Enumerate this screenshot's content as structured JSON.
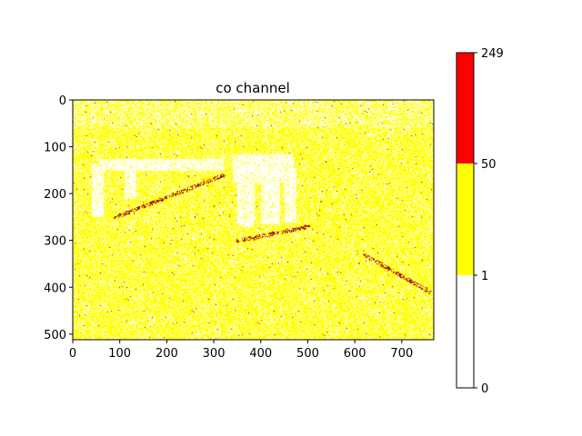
{
  "chart_data": {
    "type": "heatmap",
    "title": "co channel",
    "xlabel": "",
    "ylabel": "",
    "image_size": {
      "width": 768,
      "height": 512
    },
    "xlim": [
      0,
      768
    ],
    "ylim": [
      512,
      0
    ],
    "x_ticks": [
      0,
      100,
      200,
      300,
      400,
      500,
      600,
      700
    ],
    "y_ticks": [
      0,
      100,
      200,
      300,
      400,
      500
    ],
    "colorbar": {
      "boundaries": [
        0,
        1,
        50,
        249
      ],
      "tick_labels": [
        "0",
        "1",
        "50",
        "249"
      ],
      "colors": [
        "#ffffff",
        "#ffff00",
        "#ff0000"
      ]
    },
    "description_regions": {
      "white_patches": [
        {
          "x": [
            55,
            320
          ],
          "y": [
            125,
            150
          ]
        },
        {
          "x": [
            40,
            65
          ],
          "y": [
            135,
            250
          ]
        },
        {
          "x": [
            110,
            135
          ],
          "y": [
            140,
            210
          ]
        },
        {
          "x": [
            340,
            470
          ],
          "y": [
            115,
            175
          ]
        },
        {
          "x": [
            350,
            385
          ],
          "y": [
            165,
            270
          ]
        },
        {
          "x": [
            400,
            440
          ],
          "y": [
            155,
            265
          ]
        },
        {
          "x": [
            450,
            475
          ],
          "y": [
            145,
            260
          ]
        }
      ],
      "red_lines": [
        {
          "from": [
            90,
            250
          ],
          "to": [
            320,
            160
          ]
        },
        {
          "from": [
            620,
            330
          ],
          "to": [
            760,
            410
          ]
        },
        {
          "from": [
            350,
            300
          ],
          "to": [
            500,
            270
          ]
        }
      ]
    },
    "grid": false,
    "legend": "none"
  }
}
